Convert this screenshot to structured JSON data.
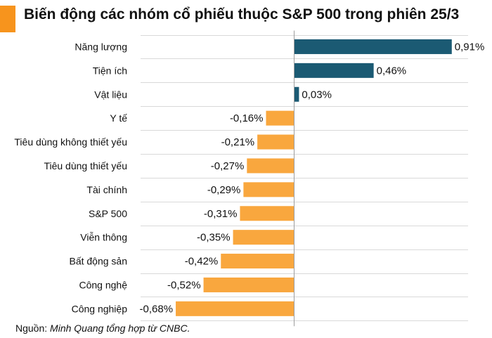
{
  "title": "Biến động các nhóm cổ phiếu thuộc S&P 500 trong phiên 25/3",
  "source": {
    "prefix": "Nguồn: ",
    "text": "Minh Quang tổng hợp từ CNBC."
  },
  "colors": {
    "positive": "#1b5a73",
    "negative": "#f9a73e",
    "accent": "#f7941d",
    "grid": "#d9d9d9"
  },
  "chart_data": {
    "type": "bar",
    "orientation": "horizontal",
    "title": "Biến động các nhóm cổ phiếu thuộc S&P 500 trong phiên 25/3",
    "categories": [
      "Năng lượng",
      "Tiện ích",
      "Vật liệu",
      "Y tế",
      "Tiêu dùng không thiết yếu",
      "Tiêu dùng thiết yếu",
      "Tài chính",
      "S&P 500",
      "Viễn thông",
      "Bất động sản",
      "Công nghệ",
      "Công nghiệp"
    ],
    "values": [
      0.91,
      0.46,
      0.03,
      -0.16,
      -0.21,
      -0.27,
      -0.29,
      -0.31,
      -0.35,
      -0.42,
      -0.52,
      -0.68
    ],
    "labels": [
      "0,91%",
      "0,46%",
      "0,03%",
      "-0,16%",
      "-0,21%",
      "-0,27%",
      "-0,29%",
      "-0,31%",
      "-0,35%",
      "-0,42%",
      "-0,52%",
      "-0,68%"
    ],
    "unit": "%",
    "grid": true
  }
}
